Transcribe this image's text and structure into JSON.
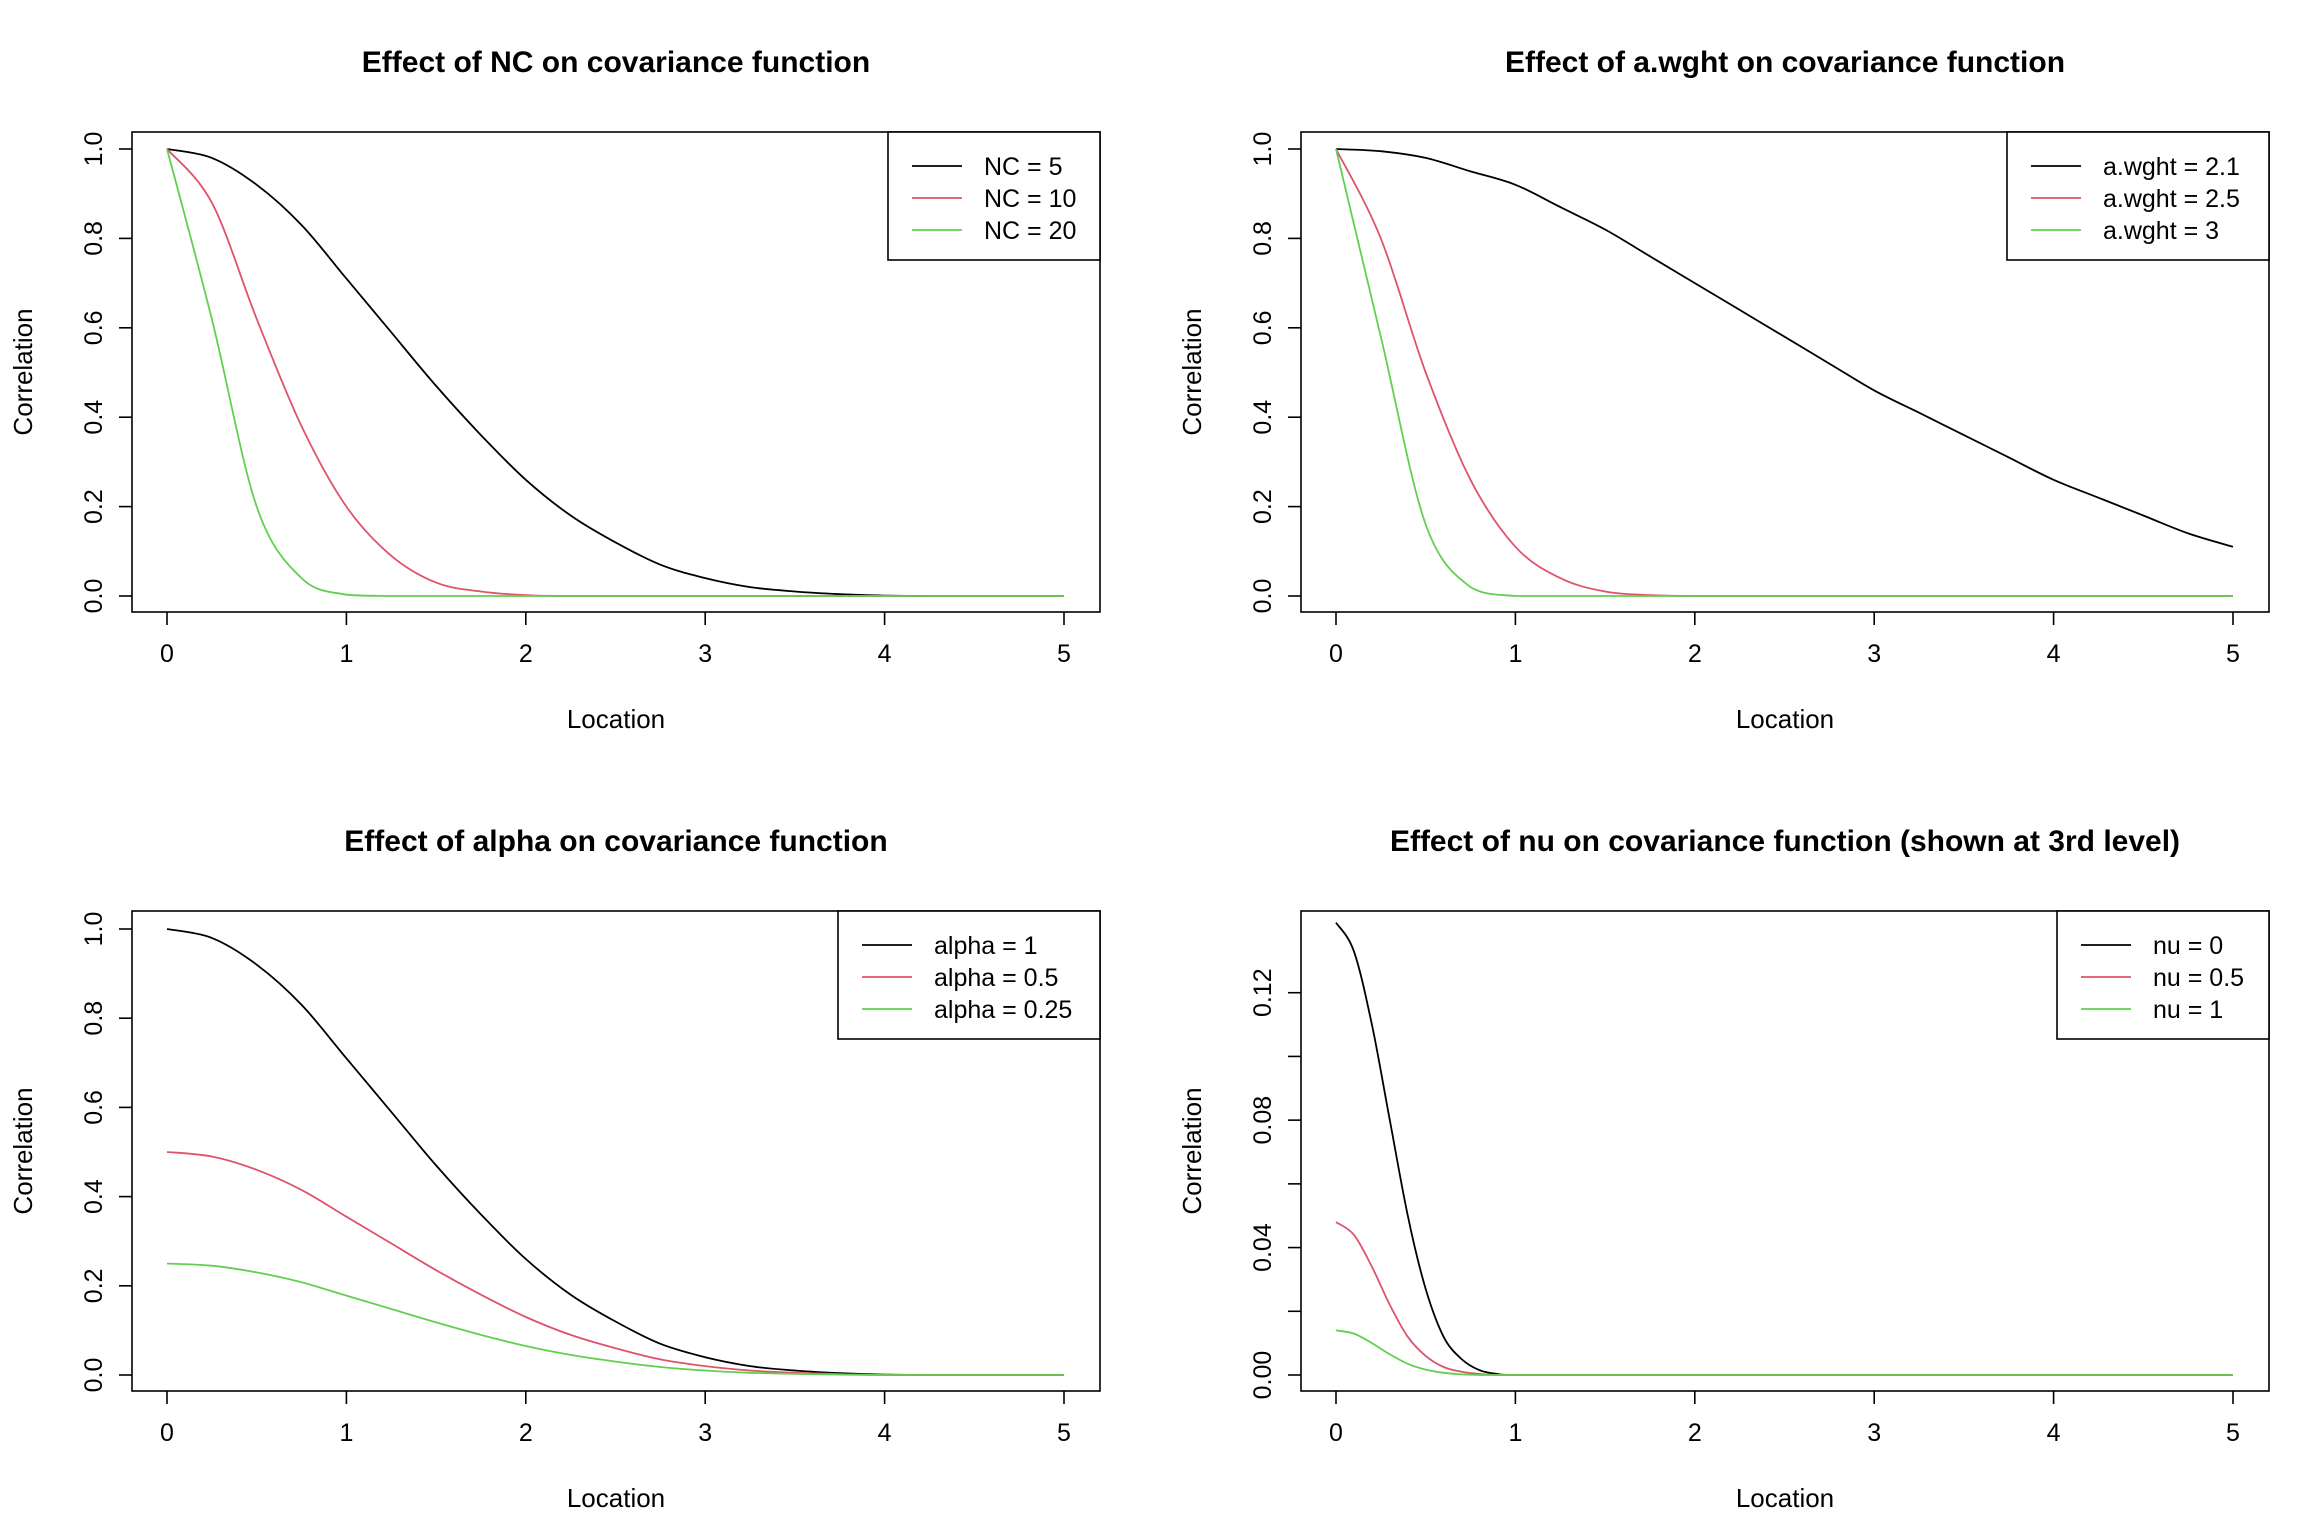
{
  "chart_data": [
    {
      "type": "line",
      "title": "Effect of NC on covariance function",
      "xlabel": "Location",
      "ylabel": "Correlation",
      "xlim": [
        0,
        5
      ],
      "ylim": [
        0,
        1
      ],
      "xticks": [
        "0",
        "1",
        "2",
        "3",
        "4",
        "5"
      ],
      "yticks": [
        "0.0",
        "0.2",
        "0.4",
        "0.6",
        "0.8",
        "1.0"
      ],
      "legend_position": "top-right",
      "grid": false,
      "x": [
        0,
        0.25,
        0.5,
        0.75,
        1.0,
        1.25,
        1.5,
        1.75,
        2.0,
        2.25,
        2.5,
        2.75,
        3.0,
        3.25,
        3.5,
        3.75,
        4.0,
        4.25,
        4.5,
        4.75,
        5.0
      ],
      "series": [
        {
          "name": "NC = 5",
          "color": "#000000",
          "values": [
            1.0,
            0.98,
            0.92,
            0.83,
            0.71,
            0.59,
            0.47,
            0.36,
            0.26,
            0.18,
            0.12,
            0.07,
            0.04,
            0.02,
            0.01,
            0.004,
            0.001,
            0.0,
            0.0,
            0.0,
            0.0
          ]
        },
        {
          "name": "NC = 10",
          "color": "#DF536B",
          "values": [
            1.0,
            0.88,
            0.62,
            0.38,
            0.2,
            0.09,
            0.03,
            0.01,
            0.002,
            0.0,
            0.0,
            0.0,
            0.0,
            0.0,
            0.0,
            0.0,
            0.0,
            0.0,
            0.0,
            0.0,
            0.0
          ]
        },
        {
          "name": "NC = 20",
          "color": "#61D04F",
          "values": [
            1.0,
            0.62,
            0.2,
            0.04,
            0.003,
            0.0,
            0.0,
            0.0,
            0.0,
            0.0,
            0.0,
            0.0,
            0.0,
            0.0,
            0.0,
            0.0,
            0.0,
            0.0,
            0.0,
            0.0,
            0.0
          ]
        }
      ]
    },
    {
      "type": "line",
      "title": "Effect of a.wght on covariance function",
      "xlabel": "Location",
      "ylabel": "Correlation",
      "xlim": [
        0,
        5
      ],
      "ylim": [
        0,
        1
      ],
      "xticks": [
        "0",
        "1",
        "2",
        "3",
        "4",
        "5"
      ],
      "yticks": [
        "0.0",
        "0.2",
        "0.4",
        "0.6",
        "0.8",
        "1.0"
      ],
      "legend_position": "top-right",
      "grid": false,
      "x": [
        0,
        0.25,
        0.5,
        0.75,
        1.0,
        1.25,
        1.5,
        1.75,
        2.0,
        2.25,
        2.5,
        2.75,
        3.0,
        3.25,
        3.5,
        3.75,
        4.0,
        4.25,
        4.5,
        4.75,
        5.0
      ],
      "series": [
        {
          "name": "a.wght = 2.1",
          "color": "#000000",
          "values": [
            1.0,
            0.995,
            0.98,
            0.95,
            0.92,
            0.87,
            0.82,
            0.76,
            0.7,
            0.64,
            0.58,
            0.52,
            0.46,
            0.41,
            0.36,
            0.31,
            0.26,
            0.22,
            0.18,
            0.14,
            0.11
          ]
        },
        {
          "name": "a.wght = 2.5",
          "color": "#DF536B",
          "values": [
            1.0,
            0.8,
            0.5,
            0.26,
            0.11,
            0.04,
            0.01,
            0.002,
            0.0,
            0.0,
            0.0,
            0.0,
            0.0,
            0.0,
            0.0,
            0.0,
            0.0,
            0.0,
            0.0,
            0.0,
            0.0
          ]
        },
        {
          "name": "a.wght = 3",
          "color": "#61D04F",
          "values": [
            1.0,
            0.58,
            0.16,
            0.02,
            0.0,
            0.0,
            0.0,
            0.0,
            0.0,
            0.0,
            0.0,
            0.0,
            0.0,
            0.0,
            0.0,
            0.0,
            0.0,
            0.0,
            0.0,
            0.0,
            0.0
          ]
        }
      ]
    },
    {
      "type": "line",
      "title": "Effect of alpha on covariance function",
      "xlabel": "Location",
      "ylabel": "Correlation",
      "xlim": [
        0,
        5
      ],
      "ylim": [
        0,
        1
      ],
      "xticks": [
        "0",
        "1",
        "2",
        "3",
        "4",
        "5"
      ],
      "yticks": [
        "0.0",
        "0.2",
        "0.4",
        "0.6",
        "0.8",
        "1.0"
      ],
      "legend_position": "top-right",
      "grid": false,
      "x": [
        0,
        0.25,
        0.5,
        0.75,
        1.0,
        1.25,
        1.5,
        1.75,
        2.0,
        2.25,
        2.5,
        2.75,
        3.0,
        3.25,
        3.5,
        3.75,
        4.0,
        4.25,
        4.5,
        4.75,
        5.0
      ],
      "series": [
        {
          "name": "alpha = 1",
          "color": "#000000",
          "values": [
            1.0,
            0.98,
            0.92,
            0.83,
            0.71,
            0.59,
            0.47,
            0.36,
            0.26,
            0.18,
            0.12,
            0.07,
            0.04,
            0.02,
            0.01,
            0.004,
            0.001,
            0.0,
            0.0,
            0.0,
            0.0
          ]
        },
        {
          "name": "alpha = 0.5",
          "color": "#DF536B",
          "values": [
            0.5,
            0.49,
            0.46,
            0.415,
            0.355,
            0.295,
            0.235,
            0.18,
            0.13,
            0.09,
            0.06,
            0.035,
            0.02,
            0.01,
            0.005,
            0.002,
            0.0,
            0.0,
            0.0,
            0.0,
            0.0
          ]
        },
        {
          "name": "alpha = 0.25",
          "color": "#61D04F",
          "values": [
            0.25,
            0.245,
            0.23,
            0.208,
            0.178,
            0.148,
            0.118,
            0.09,
            0.065,
            0.045,
            0.03,
            0.018,
            0.01,
            0.005,
            0.0025,
            0.001,
            0.0,
            0.0,
            0.0,
            0.0,
            0.0
          ]
        }
      ]
    },
    {
      "type": "line",
      "title": "Effect of nu on covariance function (shown at 3rd level)",
      "xlabel": "Location",
      "ylabel": "Correlation",
      "xlim": [
        0,
        5
      ],
      "ylim": [
        0,
        0.14
      ],
      "xticks": [
        "0",
        "1",
        "2",
        "3",
        "4",
        "5"
      ],
      "yticks": [
        "0.00",
        "0.04",
        "0.08",
        "0.12"
      ],
      "ytick_values": [
        0,
        0.04,
        0.08,
        0.12
      ],
      "yminor_ticks": [
        0.02,
        0.06,
        0.1
      ],
      "legend_position": "top-right",
      "grid": false,
      "x": [
        0,
        0.1,
        0.2,
        0.3,
        0.4,
        0.5,
        0.6,
        0.7,
        0.8,
        0.9,
        1.0,
        1.5,
        2.0,
        2.5,
        3.0,
        3.5,
        4.0,
        4.5,
        5.0
      ],
      "series": [
        {
          "name": "nu = 0",
          "color": "#000000",
          "values": [
            0.142,
            0.133,
            0.11,
            0.08,
            0.05,
            0.027,
            0.012,
            0.005,
            0.0015,
            0.0003,
            0.0,
            0.0,
            0.0,
            0.0,
            0.0,
            0.0,
            0.0,
            0.0,
            0.0
          ]
        },
        {
          "name": "nu = 0.5",
          "color": "#DF536B",
          "values": [
            0.048,
            0.044,
            0.034,
            0.022,
            0.012,
            0.006,
            0.0025,
            0.001,
            0.0003,
            0.0,
            0.0,
            0.0,
            0.0,
            0.0,
            0.0,
            0.0,
            0.0,
            0.0,
            0.0
          ]
        },
        {
          "name": "nu = 1",
          "color": "#61D04F",
          "values": [
            0.014,
            0.013,
            0.01,
            0.0065,
            0.0035,
            0.0017,
            0.0007,
            0.0002,
            0.0,
            0.0,
            0.0,
            0.0,
            0.0,
            0.0,
            0.0,
            0.0,
            0.0,
            0.0,
            0.0
          ]
        }
      ]
    }
  ]
}
